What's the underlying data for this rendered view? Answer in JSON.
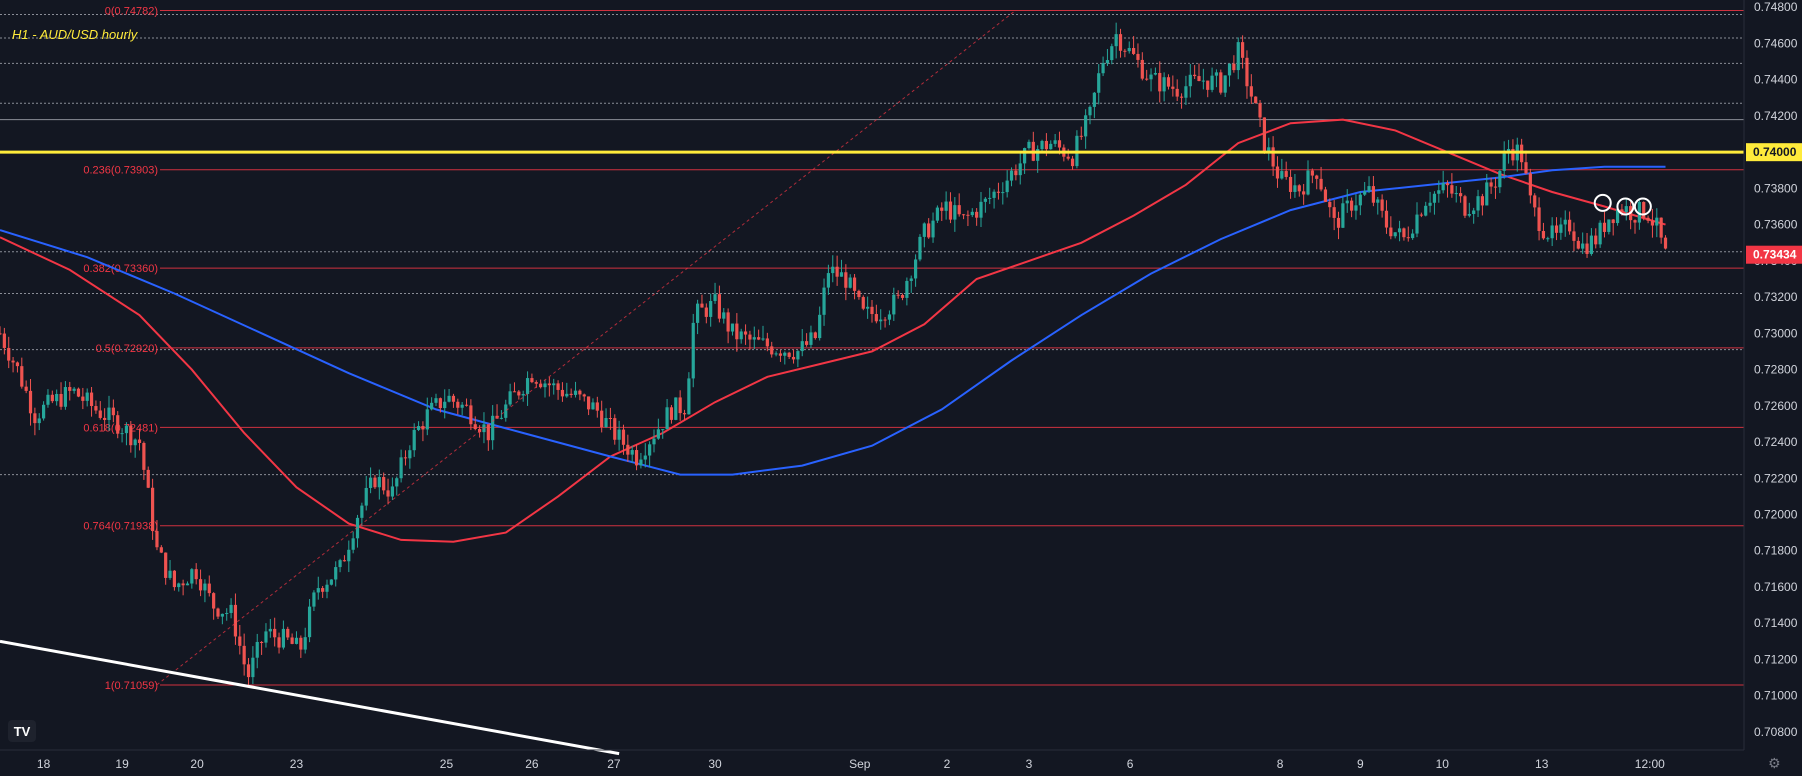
{
  "chart_data": {
    "type": "candlestick",
    "title": "H1 - AUD/USD hourly",
    "ylim": [
      0.707,
      0.7484
    ],
    "y_ticks": [
      "0.74800",
      "0.74600",
      "0.74400",
      "0.74200",
      "0.74000",
      "0.73800",
      "0.73600",
      "0.73400",
      "0.73200",
      "0.73000",
      "0.72800",
      "0.72600",
      "0.72400",
      "0.72200",
      "0.72000",
      "0.71800",
      "0.71600",
      "0.71400",
      "0.71200",
      "0.71000",
      "0.70800"
    ],
    "x_ticks": [
      {
        "label": "18",
        "t": 0.025
      },
      {
        "label": "19",
        "t": 0.07
      },
      {
        "label": "20",
        "t": 0.113
      },
      {
        "label": "23",
        "t": 0.17
      },
      {
        "label": "25",
        "t": 0.256
      },
      {
        "label": "26",
        "t": 0.305
      },
      {
        "label": "27",
        "t": 0.352
      },
      {
        "label": "30",
        "t": 0.41
      },
      {
        "label": "Sep",
        "t": 0.493
      },
      {
        "label": "2",
        "t": 0.543
      },
      {
        "label": "3",
        "t": 0.59
      },
      {
        "label": "6",
        "t": 0.648
      },
      {
        "label": "8",
        "t": 0.734
      },
      {
        "label": "9",
        "t": 0.78
      },
      {
        "label": "10",
        "t": 0.827
      },
      {
        "label": "13",
        "t": 0.884
      },
      {
        "label": "12:00",
        "t": 0.946
      }
    ],
    "price_path": [
      [
        0.0,
        0.73
      ],
      [
        0.01,
        0.728
      ],
      [
        0.02,
        0.7255
      ],
      [
        0.03,
        0.7262
      ],
      [
        0.042,
        0.7268
      ],
      [
        0.055,
        0.7258
      ],
      [
        0.068,
        0.725
      ],
      [
        0.08,
        0.724
      ],
      [
        0.09,
        0.718
      ],
      [
        0.1,
        0.716
      ],
      [
        0.112,
        0.717
      ],
      [
        0.122,
        0.715
      ],
      [
        0.133,
        0.7145
      ],
      [
        0.142,
        0.711
      ],
      [
        0.152,
        0.7135
      ],
      [
        0.165,
        0.713
      ],
      [
        0.172,
        0.7125
      ],
      [
        0.182,
        0.716
      ],
      [
        0.195,
        0.717
      ],
      [
        0.205,
        0.72
      ],
      [
        0.215,
        0.722
      ],
      [
        0.225,
        0.7212
      ],
      [
        0.235,
        0.724
      ],
      [
        0.245,
        0.7255
      ],
      [
        0.256,
        0.7265
      ],
      [
        0.268,
        0.7258
      ],
      [
        0.28,
        0.7245
      ],
      [
        0.292,
        0.7262
      ],
      [
        0.305,
        0.7278
      ],
      [
        0.318,
        0.727
      ],
      [
        0.33,
        0.7265
      ],
      [
        0.342,
        0.7258
      ],
      [
        0.352,
        0.7245
      ],
      [
        0.365,
        0.7232
      ],
      [
        0.375,
        0.7245
      ],
      [
        0.385,
        0.7258
      ],
      [
        0.393,
        0.726
      ],
      [
        0.398,
        0.731
      ],
      [
        0.41,
        0.7316
      ],
      [
        0.42,
        0.73
      ],
      [
        0.432,
        0.7295
      ],
      [
        0.445,
        0.7292
      ],
      [
        0.458,
        0.729
      ],
      [
        0.468,
        0.7298
      ],
      [
        0.475,
        0.7335
      ],
      [
        0.485,
        0.733
      ],
      [
        0.495,
        0.731
      ],
      [
        0.505,
        0.7312
      ],
      [
        0.515,
        0.7318
      ],
      [
        0.522,
        0.7335
      ],
      [
        0.53,
        0.7355
      ],
      [
        0.542,
        0.737
      ],
      [
        0.552,
        0.7362
      ],
      [
        0.565,
        0.7372
      ],
      [
        0.578,
        0.7386
      ],
      [
        0.59,
        0.74
      ],
      [
        0.602,
        0.7405
      ],
      [
        0.615,
        0.7398
      ],
      [
        0.625,
        0.742
      ],
      [
        0.632,
        0.745
      ],
      [
        0.64,
        0.7465
      ],
      [
        0.648,
        0.7455
      ],
      [
        0.66,
        0.744
      ],
      [
        0.675,
        0.7435
      ],
      [
        0.69,
        0.744
      ],
      [
        0.7,
        0.7438
      ],
      [
        0.71,
        0.7455
      ],
      [
        0.718,
        0.743
      ],
      [
        0.725,
        0.7405
      ],
      [
        0.734,
        0.7385
      ],
      [
        0.745,
        0.738
      ],
      [
        0.755,
        0.739
      ],
      [
        0.765,
        0.736
      ],
      [
        0.775,
        0.7372
      ],
      [
        0.785,
        0.7378
      ],
      [
        0.795,
        0.736
      ],
      [
        0.805,
        0.7352
      ],
      [
        0.818,
        0.7375
      ],
      [
        0.83,
        0.738
      ],
      [
        0.84,
        0.737
      ],
      [
        0.85,
        0.7375
      ],
      [
        0.858,
        0.7385
      ],
      [
        0.865,
        0.7402
      ],
      [
        0.872,
        0.74
      ],
      [
        0.878,
        0.737
      ],
      [
        0.885,
        0.7358
      ],
      [
        0.892,
        0.7352
      ],
      [
        0.9,
        0.736
      ],
      [
        0.907,
        0.7348
      ],
      [
        0.915,
        0.7352
      ],
      [
        0.923,
        0.7365
      ],
      [
        0.93,
        0.737
      ],
      [
        0.937,
        0.7366
      ],
      [
        0.944,
        0.7368
      ],
      [
        0.95,
        0.7358
      ],
      [
        0.955,
        0.7343
      ]
    ],
    "moving_averages": [
      {
        "color": "#f23645",
        "points": [
          [
            0.0,
            0.7353
          ],
          [
            0.04,
            0.7335
          ],
          [
            0.08,
            0.731
          ],
          [
            0.11,
            0.728
          ],
          [
            0.14,
            0.7245
          ],
          [
            0.17,
            0.7215
          ],
          [
            0.2,
            0.7195
          ],
          [
            0.23,
            0.7186
          ],
          [
            0.26,
            0.7185
          ],
          [
            0.29,
            0.719
          ],
          [
            0.32,
            0.721
          ],
          [
            0.35,
            0.7232
          ],
          [
            0.38,
            0.7245
          ],
          [
            0.41,
            0.7262
          ],
          [
            0.44,
            0.7276
          ],
          [
            0.47,
            0.7283
          ],
          [
            0.5,
            0.729
          ],
          [
            0.53,
            0.7305
          ],
          [
            0.56,
            0.733
          ],
          [
            0.59,
            0.734
          ],
          [
            0.62,
            0.735
          ],
          [
            0.65,
            0.7365
          ],
          [
            0.68,
            0.7382
          ],
          [
            0.71,
            0.7405
          ],
          [
            0.74,
            0.7416
          ],
          [
            0.77,
            0.7418
          ],
          [
            0.8,
            0.7412
          ],
          [
            0.83,
            0.74
          ],
          [
            0.86,
            0.7388
          ],
          [
            0.89,
            0.7378
          ],
          [
            0.92,
            0.737
          ],
          [
            0.955,
            0.736
          ]
        ]
      },
      {
        "color": "#2962ff",
        "points": [
          [
            0.0,
            0.7357
          ],
          [
            0.05,
            0.7342
          ],
          [
            0.1,
            0.7322
          ],
          [
            0.15,
            0.73
          ],
          [
            0.2,
            0.7278
          ],
          [
            0.25,
            0.7258
          ],
          [
            0.3,
            0.7245
          ],
          [
            0.35,
            0.7232
          ],
          [
            0.39,
            0.7222
          ],
          [
            0.42,
            0.7222
          ],
          [
            0.46,
            0.7227
          ],
          [
            0.5,
            0.7238
          ],
          [
            0.54,
            0.7258
          ],
          [
            0.58,
            0.7285
          ],
          [
            0.62,
            0.731
          ],
          [
            0.66,
            0.7333
          ],
          [
            0.7,
            0.7352
          ],
          [
            0.74,
            0.7368
          ],
          [
            0.78,
            0.7378
          ],
          [
            0.82,
            0.7382
          ],
          [
            0.86,
            0.7386
          ],
          [
            0.89,
            0.739
          ],
          [
            0.92,
            0.7392
          ],
          [
            0.955,
            0.7392
          ]
        ]
      }
    ],
    "fibonacci": [
      {
        "label": "0(0.74782)",
        "value": 0.74782
      },
      {
        "label": "0.236(0.73903)",
        "value": 0.73903
      },
      {
        "label": "0.382(0.73360)",
        "value": 0.7336
      },
      {
        "label": "0.5(0.72920)",
        "value": 0.7292
      },
      {
        "label": "0.618(0.72481)",
        "value": 0.72481
      },
      {
        "label": "0.764(0.71938)",
        "value": 0.71938
      },
      {
        "label": "1(0.71059)",
        "value": 0.71059
      }
    ],
    "white_levels": [
      0.7476,
      0.7463,
      0.7449,
      0.7427,
      0.7418,
      0.7345,
      0.7322,
      0.7291,
      0.7222
    ],
    "support_line": {
      "value": 0.74,
      "color": "#ffeb3b",
      "label": "0.74000"
    },
    "current_price": {
      "value": 0.73434,
      "label": "0.73434",
      "color": "#f23645"
    },
    "circled_points": [
      [
        0.919,
        0.7372
      ],
      [
        0.932,
        0.737
      ],
      [
        0.942,
        0.737
      ]
    ],
    "trendline": [
      [
        0.0,
        0.713
      ],
      [
        0.355,
        0.7068
      ]
    ],
    "fib_diagonal": [
      [
        0.09,
        0.7106
      ],
      [
        0.582,
        0.7478
      ]
    ]
  }
}
